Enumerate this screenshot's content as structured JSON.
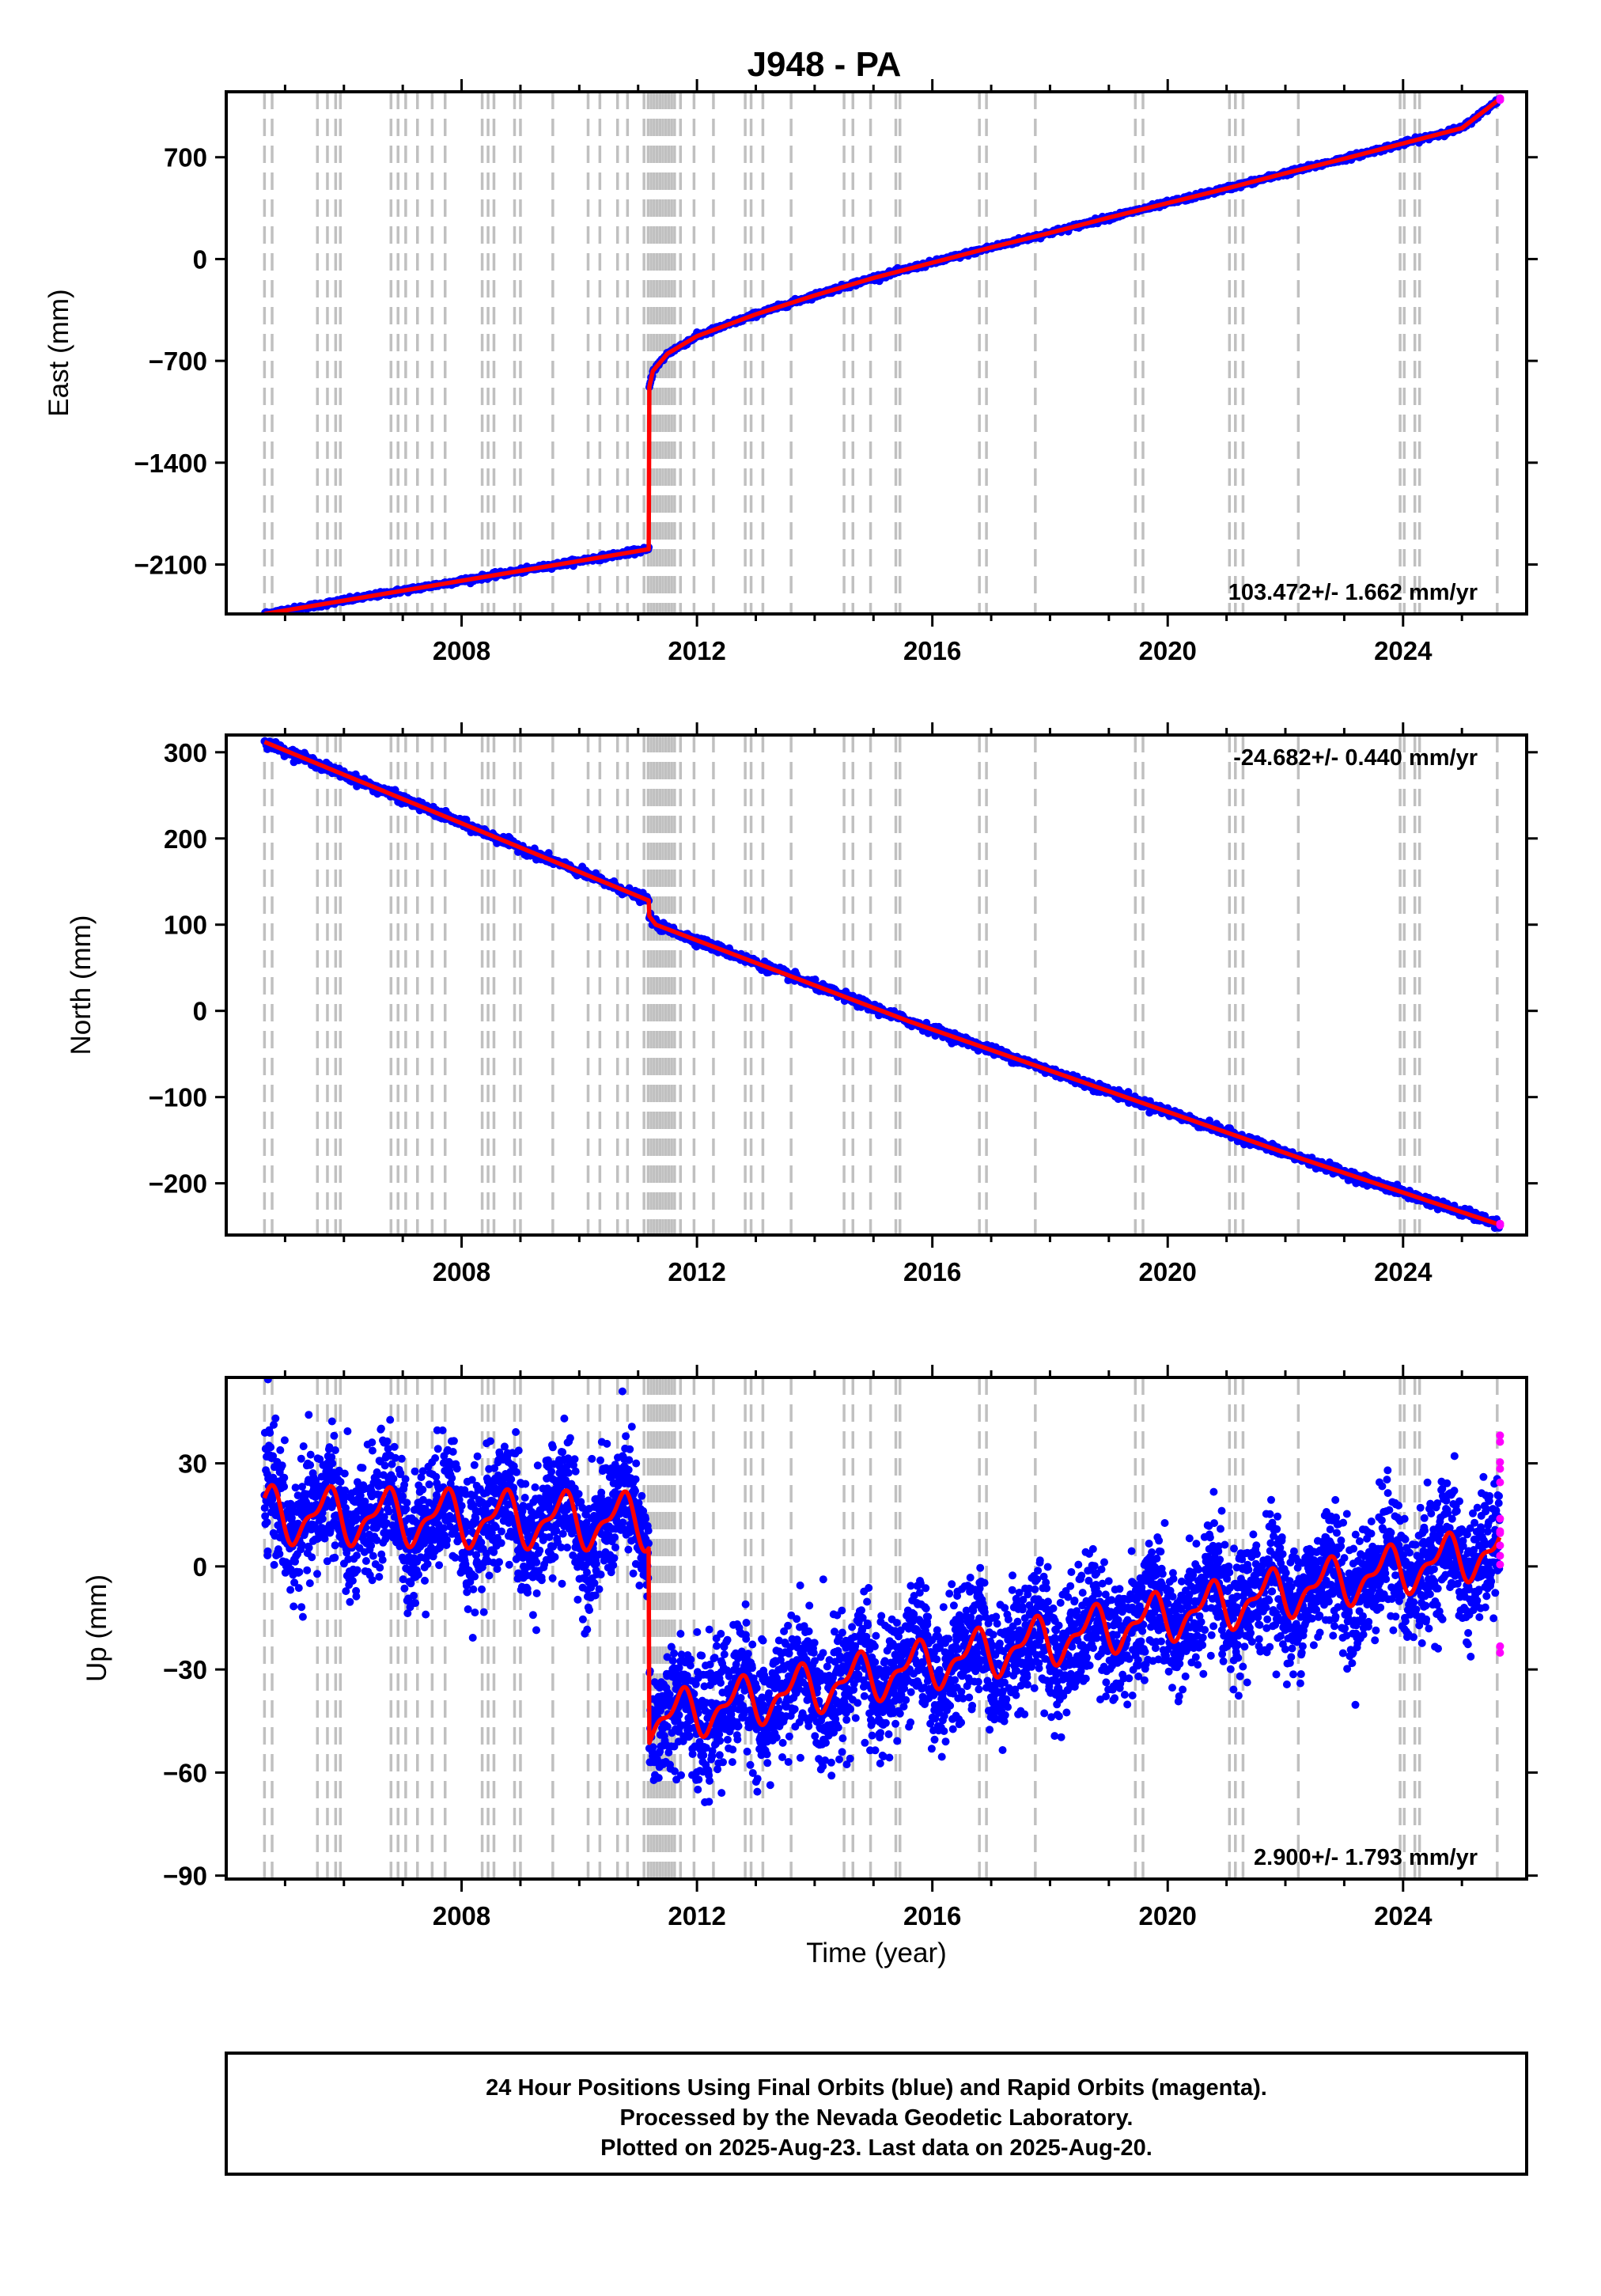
{
  "title": "J948 - PA",
  "xlabel": "Time (year)",
  "footer": {
    "lines": [
      "24 Hour Positions Using Final Orbits (blue) and Rapid Orbits (magenta).",
      "Processed by the Nevada Geodetic Laboratory.",
      "Plotted on 2025-Aug-23. Last data on 2025-Aug-20."
    ]
  },
  "colors": {
    "final_orbits": "#0000ff",
    "rapid_orbits": "#ff00ff",
    "model_fit": "#ff0000",
    "event_lines": "#c0c0c0"
  },
  "chart_data": [
    {
      "type": "scatter",
      "panel": "east",
      "ylabel": "East (mm)",
      "rate_label": "103.472+/- 1.662 mm/yr",
      "rate_position": "bottom-right",
      "xlim": [
        2004.0,
        2026.1
      ],
      "ylim": [
        -2440,
        1150
      ],
      "x_ticks": [
        2008,
        2012,
        2016,
        2020,
        2024
      ],
      "y_ticks": [
        700,
        0,
        -700,
        -1400,
        -2100
      ],
      "y_tick_labels": [
        "700",
        "0",
        "−700",
        "−1400",
        "−2100"
      ],
      "segments": [
        {
          "x": [
            2004.65,
            2011.18
          ],
          "y": [
            -2440,
            -1995
          ]
        },
        {
          "x": [
            2011.19,
            2011.25,
            2011.5,
            2012.0,
            2013.0,
            2014.0,
            2015.0,
            2016.0,
            2017.0,
            2018.0,
            2019.0,
            2020.0,
            2021.0,
            2022.0,
            2023.0,
            2024.0,
            2025.0,
            2025.64
          ],
          "y": [
            -880,
            -770,
            -650,
            -530,
            -380,
            -250,
            -130,
            -25,
            80,
            180,
            285,
            385,
            485,
            590,
            690,
            795,
            900,
            1100
          ]
        }
      ],
      "series": [
        {
          "name": "Final Orbits",
          "color": "#0000ff"
        },
        {
          "name": "Rapid Orbits",
          "color": "#ff00ff"
        },
        {
          "name": "Model",
          "color": "#ff0000"
        }
      ]
    },
    {
      "type": "scatter",
      "panel": "north",
      "ylabel": "North (mm)",
      "rate_label": "-24.682+/- 0.440 mm/yr",
      "rate_position": "top-right",
      "xlim": [
        2004.0,
        2026.1
      ],
      "ylim": [
        -260,
        320
      ],
      "x_ticks": [
        2008,
        2012,
        2016,
        2020,
        2024
      ],
      "y_ticks": [
        300,
        200,
        100,
        0,
        -100,
        -200
      ],
      "y_tick_labels": [
        "300",
        "200",
        "100",
        "0",
        "−100",
        "−200"
      ],
      "segments": [
        {
          "x": [
            2004.65,
            2011.18
          ],
          "y": [
            312,
            128
          ]
        },
        {
          "x": [
            2011.19,
            2011.3,
            2015.6,
            2022.3,
            2025.64
          ],
          "y": [
            110,
            100,
            -12,
            -172,
            -248
          ]
        }
      ],
      "series": [
        {
          "name": "Final Orbits",
          "color": "#0000ff"
        },
        {
          "name": "Rapid Orbits",
          "color": "#ff00ff"
        },
        {
          "name": "Model",
          "color": "#ff0000"
        }
      ]
    },
    {
      "type": "scatter",
      "panel": "up",
      "ylabel": "Up (mm)",
      "rate_label": "2.900+/- 1.793 mm/yr",
      "rate_position": "bottom-right",
      "xlim": [
        2004.0,
        2026.1
      ],
      "ylim": [
        -91,
        55
      ],
      "x_ticks": [
        2008,
        2012,
        2016,
        2020,
        2024
      ],
      "y_ticks": [
        30,
        0,
        -30,
        -60,
        -90
      ],
      "y_tick_labels": [
        "30",
        "0",
        "−30",
        "−60",
        "−90"
      ],
      "segments": [
        {
          "x": [
            2004.65,
            2011.18
          ],
          "y": [
            15,
            13
          ],
          "seasonal_amplitude": 7,
          "noise": 9
        },
        {
          "x": [
            2011.19,
            2025.64
          ],
          "y": [
            -45,
            5
          ],
          "seasonal_amplitude": 6,
          "noise": 9
        }
      ],
      "series": [
        {
          "name": "Final Orbits",
          "color": "#0000ff"
        },
        {
          "name": "Rapid Orbits",
          "color": "#ff00ff"
        },
        {
          "name": "Model",
          "color": "#ff0000"
        }
      ]
    }
  ],
  "event_lines": [
    2004.65,
    2004.78,
    2005.55,
    2005.72,
    2005.86,
    2005.94,
    2006.8,
    2006.92,
    2007.05,
    2007.25,
    2007.5,
    2007.72,
    2008.35,
    2008.45,
    2008.55,
    2008.9,
    2009.0,
    2009.55,
    2010.15,
    2010.35,
    2010.65,
    2010.82,
    2011.1,
    2011.17,
    2011.22,
    2011.27,
    2011.32,
    2011.37,
    2011.42,
    2011.47,
    2011.52,
    2011.57,
    2011.62,
    2011.72,
    2011.95,
    2012.28,
    2012.82,
    2012.92,
    2013.12,
    2013.6,
    2014.5,
    2014.65,
    2014.95,
    2015.38,
    2015.45,
    2016.8,
    2016.92,
    2017.75,
    2019.45,
    2019.58,
    2021.05,
    2021.15,
    2021.28,
    2022.22,
    2023.95,
    2024.02,
    2024.2,
    2024.28,
    2025.6
  ]
}
